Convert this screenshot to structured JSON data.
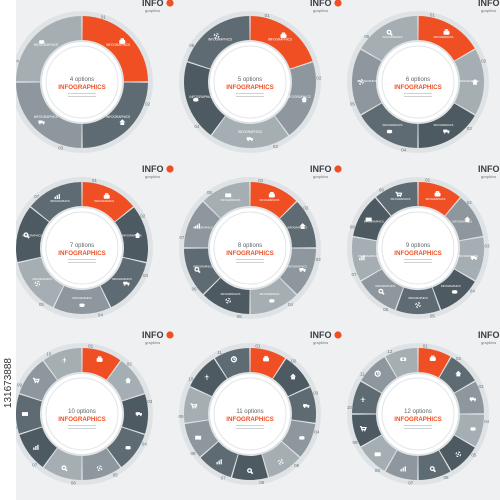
{
  "colors": {
    "accent": "#f04e23",
    "dark": "#4e5a62",
    "mid": "#5f6b72",
    "light": "#8d979d",
    "lighter": "#a5aeb3",
    "ring": "#dfe3e5",
    "center_bg": "#ffffff",
    "center_text": "#5b656b",
    "logo_accent": "#f04e23"
  },
  "logo": {
    "text": "INFO",
    "sub": "graphics"
  },
  "center_title": "INFOGRAPHICS",
  "segment_label": "INFOGRAPHICS",
  "watermark_vertical": "131673888",
  "diagrams": [
    {
      "options_label": "4 options",
      "count": 4,
      "icons": [
        "briefcase-icon",
        "home-icon",
        "truck-icon",
        "coin-icon"
      ]
    },
    {
      "options_label": "5 options",
      "count": 5,
      "icons": [
        "briefcase-icon",
        "home-icon",
        "truck-icon",
        "coin-icon",
        "gear-icon"
      ]
    },
    {
      "options_label": "6 options",
      "count": 6,
      "icons": [
        "briefcase-icon",
        "home-icon",
        "truck-icon",
        "coin-icon",
        "gear-icon",
        "search-icon"
      ]
    },
    {
      "options_label": "7 options",
      "count": 7,
      "icons": [
        "briefcase-icon",
        "home-icon",
        "truck-icon",
        "coin-icon",
        "gear-icon",
        "search-icon",
        "chart-icon"
      ]
    },
    {
      "options_label": "8 options",
      "count": 8,
      "icons": [
        "briefcase-icon",
        "home-icon",
        "truck-icon",
        "coin-icon",
        "gear-icon",
        "search-icon",
        "chart-icon",
        "mail-icon"
      ]
    },
    {
      "options_label": "9 options",
      "count": 9,
      "icons": [
        "briefcase-icon",
        "home-icon",
        "truck-icon",
        "coin-icon",
        "gear-icon",
        "search-icon",
        "chart-icon",
        "mail-icon",
        "cart-icon"
      ]
    },
    {
      "options_label": "10 options",
      "count": 10,
      "icons": [
        "briefcase-icon",
        "home-icon",
        "truck-icon",
        "coin-icon",
        "gear-icon",
        "search-icon",
        "chart-icon",
        "mail-icon",
        "cart-icon",
        "plane-icon"
      ]
    },
    {
      "options_label": "11 options",
      "count": 11,
      "icons": [
        "briefcase-icon",
        "home-icon",
        "truck-icon",
        "coin-icon",
        "gear-icon",
        "search-icon",
        "chart-icon",
        "mail-icon",
        "cart-icon",
        "plane-icon",
        "clock-icon"
      ]
    },
    {
      "options_label": "12 options",
      "count": 12,
      "icons": [
        "briefcase-icon",
        "home-icon",
        "truck-icon",
        "coin-icon",
        "gear-icon",
        "search-icon",
        "chart-icon",
        "mail-icon",
        "cart-icon",
        "plane-icon",
        "clock-icon",
        "camera-icon"
      ]
    }
  ]
}
